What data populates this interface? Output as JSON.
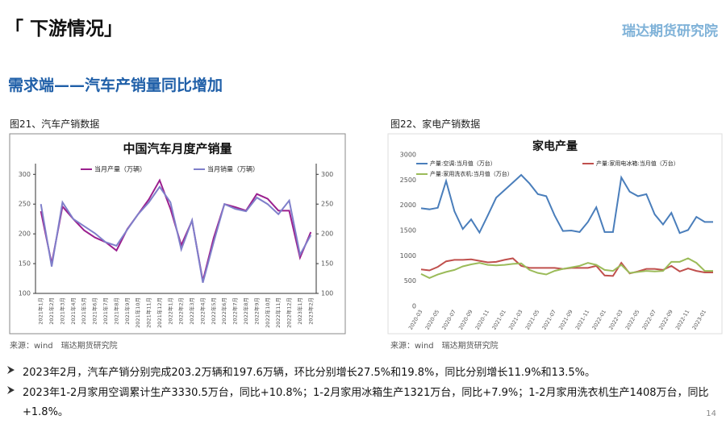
{
  "header": {
    "title": "「 下游情况」",
    "logo": "瑞达期货研究院"
  },
  "subtitle": "需求端——汽车产销量同比增加",
  "figures": [
    {
      "caption": "图21、汽车产销数据",
      "source": "来源：wind　瑞达期货研究院"
    },
    {
      "caption": "图22、家电产销数据",
      "source": "来源：wind　瑞达期货研究院"
    }
  ],
  "chart_data": [
    {
      "type": "line",
      "title": "中国汽车月度产销量",
      "categories": [
        "2021年1月",
        "2021年2月",
        "2021年3月",
        "2021年4月",
        "2021年5月",
        "2021年6月",
        "2021年7月",
        "2021年8月",
        "2021年9月",
        "2021年10月",
        "2021年11月",
        "2021年12月",
        "2022年1月",
        "2022年2月",
        "2022年3月",
        "2022年4月",
        "2022年5月",
        "2022年6月",
        "2022年7月",
        "2022年8月",
        "2022年9月",
        "2022年10月",
        "2022年11月",
        "2022年12月",
        "2023年1月",
        "2023年2月"
      ],
      "series": [
        {
          "name": "当月产量（万辆）",
          "color": "#9b1f8e",
          "values": [
            238,
            150,
            246,
            225,
            206,
            194,
            186,
            172,
            208,
            233,
            258,
            290,
            242,
            181,
            222,
            121,
            193,
            250,
            245,
            239,
            267,
            259,
            239,
            239,
            160,
            203
          ]
        },
        {
          "name": "当月销量（万辆）",
          "color": "#7f7fca",
          "values": [
            250,
            145,
            253,
            225,
            213,
            201,
            186,
            180,
            207,
            233,
            253,
            279,
            253,
            174,
            223,
            118,
            186,
            250,
            242,
            238,
            261,
            250,
            233,
            256,
            165,
            198
          ]
        }
      ],
      "ylim": [
        100,
        318
      ],
      "yticks": [
        100,
        150,
        200,
        250,
        300
      ],
      "y2lim": [
        100,
        318
      ],
      "y2ticks": [
        100,
        150,
        200,
        250,
        300
      ]
    },
    {
      "type": "line",
      "title": "家电产量",
      "categories": [
        "2020-03",
        null,
        "2020-05",
        null,
        "2020-07",
        null,
        "2020-09",
        null,
        "2020-11",
        null,
        "2021-01",
        null,
        "2021-03",
        null,
        "2021-05",
        null,
        "2021-07",
        null,
        "2021-09",
        null,
        "2021-11",
        null,
        "2022-01",
        null,
        "2022-03",
        null,
        "2022-05",
        null,
        "2022-07",
        null,
        "2022-09",
        null,
        "2022-11",
        null,
        "2023-01",
        null
      ],
      "series": [
        {
          "name": "产量:空调:当月值（万台）",
          "color": "#4a7ebb",
          "values": [
            1940,
            1920,
            1950,
            2480,
            1880,
            1530,
            1720,
            1460,
            1800,
            2150,
            2300,
            2450,
            2600,
            2430,
            2220,
            2180,
            1800,
            1490,
            1500,
            1470,
            1670,
            1960,
            1470,
            1470,
            2550,
            2270,
            2180,
            2220,
            1820,
            1620,
            1850,
            1450,
            1510,
            1770,
            1670,
            1670
          ]
        },
        {
          "name": "产量:家用电冰箱:当月值（万台）",
          "color": "#c0504d",
          "values": [
            730,
            710,
            780,
            890,
            920,
            920,
            930,
            900,
            870,
            880,
            920,
            950,
            800,
            760,
            760,
            760,
            760,
            740,
            760,
            760,
            760,
            800,
            610,
            600,
            860,
            650,
            690,
            740,
            740,
            720,
            800,
            690,
            750,
            700,
            670,
            670
          ]
        },
        {
          "name": "产量:家用洗衣机:当月值（万台）",
          "color": "#9bbb59",
          "values": [
            640,
            560,
            630,
            680,
            720,
            790,
            830,
            860,
            820,
            810,
            820,
            840,
            850,
            720,
            660,
            630,
            700,
            740,
            770,
            800,
            860,
            820,
            720,
            700,
            820,
            660,
            680,
            700,
            690,
            700,
            880,
            880,
            950,
            860,
            700,
            700
          ]
        }
      ],
      "ylim": [
        0,
        3000
      ],
      "yticks": [
        0,
        500,
        1000,
        1500,
        2000,
        2500,
        3000
      ]
    }
  ],
  "bullets": [
    "2023年2月，汽车产销分别完成203.2万辆和197.6万辆，环比分别增长27.5%和19.8%，同比分别增长11.9%和13.5%。",
    "2023年1-2月家用空调累计生产3330.5万台，同比+10.8%；1-2月家用冰箱生产1321万台，同比+7.9%；1-2月家用洗衣机生产1408万台，同比+1.8%。"
  ],
  "page_number": "14"
}
